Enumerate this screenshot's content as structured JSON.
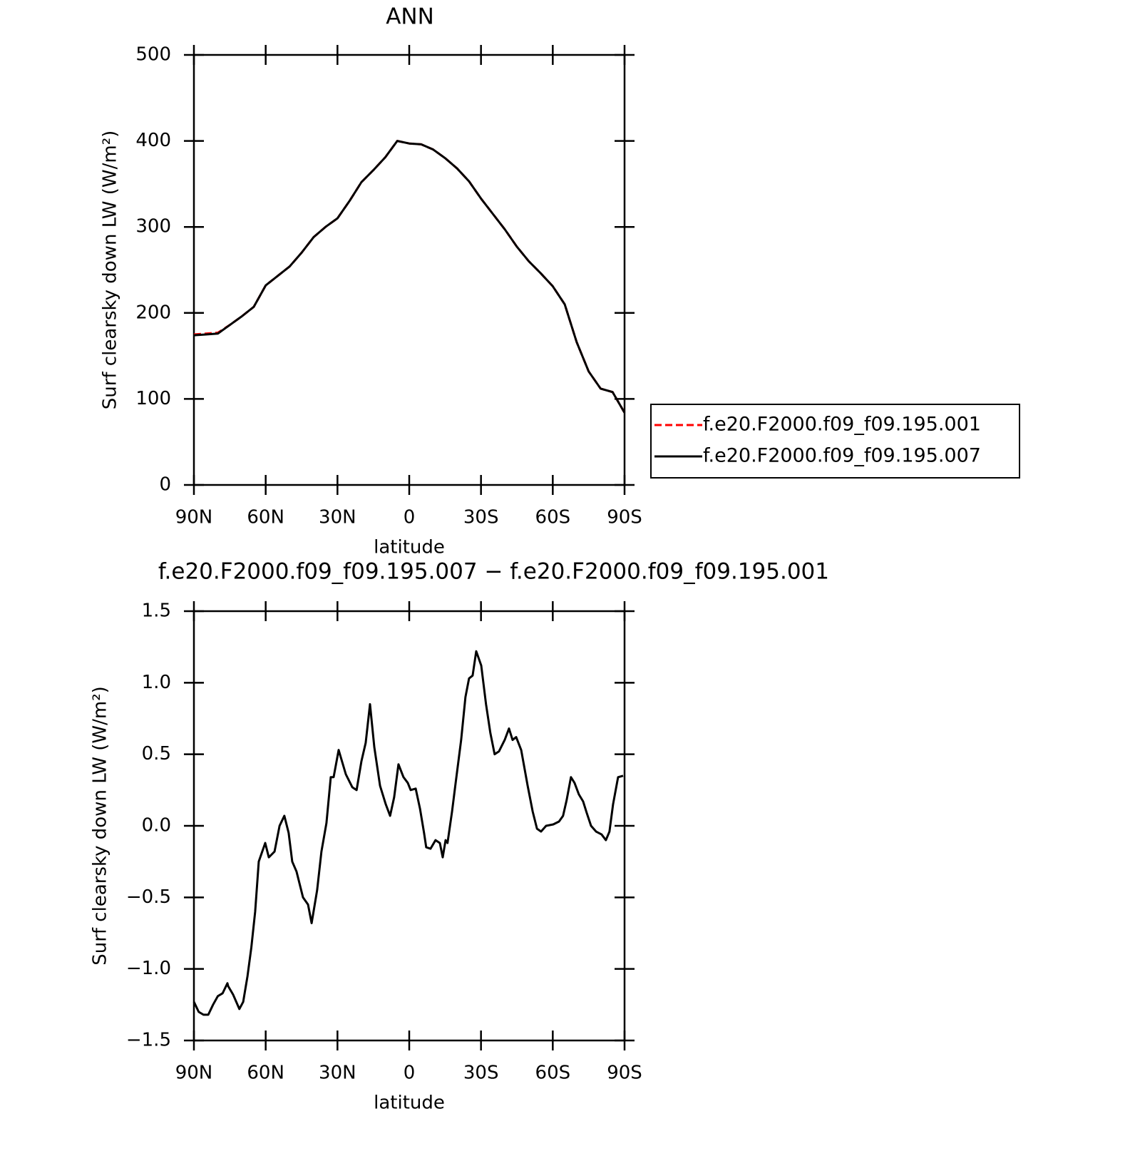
{
  "chart_data": [
    {
      "type": "line",
      "title": "ANN",
      "xlabel": "latitude",
      "ylabel": "Surf clearsky down LW (W/m²)",
      "xlim": [
        90,
        -90
      ],
      "ylim": [
        0,
        500
      ],
      "xticks": [
        {
          "value": 90,
          "label": "90N"
        },
        {
          "value": 60,
          "label": "60N"
        },
        {
          "value": 30,
          "label": "30N"
        },
        0,
        {
          "value": -30,
          "label": "30S"
        },
        {
          "value": -60,
          "label": "60S"
        },
        {
          "value": -90,
          "label": "90S"
        }
      ],
      "yticks": [
        0,
        100,
        200,
        300,
        400,
        500
      ],
      "legend": "right",
      "x": [
        90,
        85,
        80,
        75,
        70,
        65,
        60,
        55,
        50,
        45,
        40,
        35,
        30,
        25,
        20,
        15,
        10,
        5,
        0,
        -5,
        -10,
        -15,
        -20,
        -25,
        -30,
        -35,
        -40,
        -45,
        -50,
        -55,
        -60,
        -65,
        -70,
        -75,
        -80,
        -85,
        -90
      ],
      "series": [
        {
          "name": "f.e20.F2000.f09_f09.195.001",
          "color": "#ff0000",
          "style": "dashed",
          "values": [
            175,
            176,
            177,
            186,
            196,
            207,
            232,
            243,
            254,
            270,
            288,
            300,
            310,
            330,
            352,
            366,
            381,
            400,
            397,
            396,
            390,
            380,
            368,
            353,
            333,
            315,
            297,
            277,
            260,
            246,
            231,
            210,
            166,
            132,
            112,
            108,
            84
          ]
        },
        {
          "name": "f.e20.F2000.f09_f09.195.007",
          "color": "#000000",
          "style": "solid",
          "values": [
            174,
            175,
            176,
            186,
            196,
            207,
            232,
            243,
            254,
            270,
            288,
            300,
            310,
            330,
            352,
            366,
            381,
            400,
            397,
            396,
            390,
            380,
            368,
            353,
            333,
            315,
            297,
            277,
            260,
            246,
            231,
            210,
            166,
            132,
            112,
            108,
            84
          ]
        }
      ]
    },
    {
      "type": "line",
      "title": "f.e20.F2000.f09_f09.195.007 − f.e20.F2000.f09_f09.195.001",
      "xlabel": "latitude",
      "ylabel": "Surf clearsky down LW (W/m²)",
      "xlim": [
        90,
        -90
      ],
      "ylim": [
        -1.5,
        1.5
      ],
      "xticks": [
        {
          "value": 90,
          "label": "90N"
        },
        {
          "value": 60,
          "label": "60N"
        },
        {
          "value": 30,
          "label": "30N"
        },
        0,
        {
          "value": -30,
          "label": "30S"
        },
        {
          "value": -60,
          "label": "60S"
        },
        {
          "value": -90,
          "label": "90S"
        }
      ],
      "yticks": [
        {
          "value": -1.5,
          "label": "−1.5"
        },
        {
          "value": -1,
          "label": "−1.0"
        },
        {
          "value": -0.5,
          "label": "−0.5"
        },
        {
          "value": 0,
          "label": "0.0"
        },
        0.5,
        {
          "value": 1,
          "label": "1.0"
        },
        1.5
      ],
      "x": [
        90,
        88,
        86,
        84,
        82,
        80,
        78,
        76,
        75.7,
        73.6,
        71,
        69.4,
        67.6,
        66,
        64.4,
        62.9,
        60.2,
        58.7,
        56.3,
        54.2,
        52.2,
        50.4,
        48.9,
        47.1,
        44.4,
        42.3,
        40.8,
        38.5,
        36.7,
        34.6,
        32.8,
        31.6,
        29.5,
        26.5,
        23.8,
        22,
        20,
        18.2,
        16.4,
        14.6,
        12.2,
        9.8,
        8,
        6.3,
        4.5,
        2.4,
        0.6,
        -0.6,
        -2.7,
        -4.5,
        -6.2,
        -7.1,
        -8.9,
        -11,
        -12.8,
        -14,
        -15.2,
        -16,
        -17.9,
        -19.4,
        -21.7,
        -23.5,
        -25,
        -26.5,
        -28,
        -30.1,
        -32.1,
        -33.9,
        -35.7,
        -37.5,
        -39.9,
        -41.7,
        -43.2,
        -44.7,
        -46.8,
        -49.5,
        -51.6,
        -53.4,
        -55.1,
        -57.2,
        -60.2,
        -62.6,
        -64.3,
        -65.8,
        -67.6,
        -69.1,
        -70.9,
        -72.7,
        -74.2,
        -76,
        -78.1,
        -80.4,
        -82.2,
        -83.7,
        -85.2,
        -87.3,
        -89.4
      ],
      "series": [
        {
          "name": null,
          "color": "#000000",
          "style": "solid",
          "values": [
            -1.23,
            -1.3,
            -1.32,
            -1.32,
            -1.25,
            -1.19,
            -1.17,
            -1.1,
            -1.12,
            -1.18,
            -1.28,
            -1.23,
            -1.05,
            -0.85,
            -0.6,
            -0.25,
            -0.12,
            -0.22,
            -0.18,
            0.0,
            0.07,
            -0.05,
            -0.25,
            -0.32,
            -0.5,
            -0.55,
            -0.68,
            -0.45,
            -0.18,
            0.02,
            0.34,
            0.34,
            0.53,
            0.36,
            0.27,
            0.25,
            0.45,
            0.58,
            0.85,
            0.55,
            0.28,
            0.15,
            0.07,
            0.2,
            0.43,
            0.34,
            0.3,
            0.25,
            0.26,
            0.12,
            -0.05,
            -0.15,
            -0.16,
            -0.1,
            -0.12,
            -0.22,
            -0.1,
            -0.12,
            0.1,
            0.3,
            0.6,
            0.9,
            1.03,
            1.05,
            1.22,
            1.12,
            0.85,
            0.65,
            0.5,
            0.52,
            0.6,
            0.68,
            0.6,
            0.62,
            0.53,
            0.28,
            0.1,
            -0.02,
            -0.04,
            0.0,
            0.01,
            0.03,
            0.07,
            0.18,
            0.34,
            0.3,
            0.22,
            0.17,
            0.09,
            0.0,
            -0.04,
            -0.06,
            -0.1,
            -0.04,
            0.15,
            0.34,
            0.35
          ]
        }
      ]
    }
  ]
}
